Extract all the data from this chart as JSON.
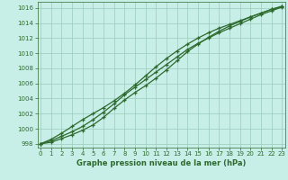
{
  "title": "Graphe pression niveau de la mer (hPa)",
  "hours": [
    0,
    1,
    2,
    3,
    4,
    5,
    6,
    7,
    8,
    9,
    10,
    11,
    12,
    13,
    14,
    15,
    16,
    17,
    18,
    19,
    20,
    21,
    22,
    23
  ],
  "line1": [
    998.0,
    998.4,
    999.0,
    999.6,
    1000.3,
    1001.2,
    1002.2,
    1003.3,
    1004.5,
    1005.5,
    1006.5,
    1007.5,
    1008.5,
    1009.5,
    1010.5,
    1011.3,
    1012.0,
    1012.7,
    1013.3,
    1013.9,
    1014.5,
    1015.1,
    1015.6,
    1016.1
  ],
  "line2": [
    998.0,
    998.6,
    999.4,
    1000.3,
    1001.2,
    1002.0,
    1002.8,
    1003.7,
    1004.7,
    1005.8,
    1007.0,
    1008.2,
    1009.3,
    1010.3,
    1011.2,
    1012.0,
    1012.7,
    1013.3,
    1013.8,
    1014.3,
    1014.8,
    1015.3,
    1015.8,
    1016.2
  ],
  "line3": [
    998.0,
    998.2,
    998.7,
    999.2,
    999.8,
    1000.5,
    1001.5,
    1002.7,
    1003.8,
    1004.8,
    1005.7,
    1006.7,
    1007.8,
    1009.0,
    1010.2,
    1011.2,
    1012.1,
    1012.9,
    1013.6,
    1014.2,
    1014.8,
    1015.3,
    1015.8,
    1016.2
  ],
  "line_color": "#2d6a2d",
  "bg_color": "#c8eee8",
  "grid_color": "#99ccbb",
  "ylim": [
    997.5,
    1016.8
  ],
  "yticks": [
    998,
    1000,
    1002,
    1004,
    1006,
    1008,
    1010,
    1012,
    1014,
    1016
  ],
  "xlim": [
    -0.3,
    23.3
  ],
  "xticks": [
    0,
    1,
    2,
    3,
    4,
    5,
    6,
    7,
    8,
    9,
    10,
    11,
    12,
    13,
    14,
    15,
    16,
    17,
    18,
    19,
    20,
    21,
    22,
    23
  ],
  "tick_fontsize": 5.0,
  "label_fontsize": 6.0,
  "linewidth": 0.9,
  "markersize": 3.5
}
